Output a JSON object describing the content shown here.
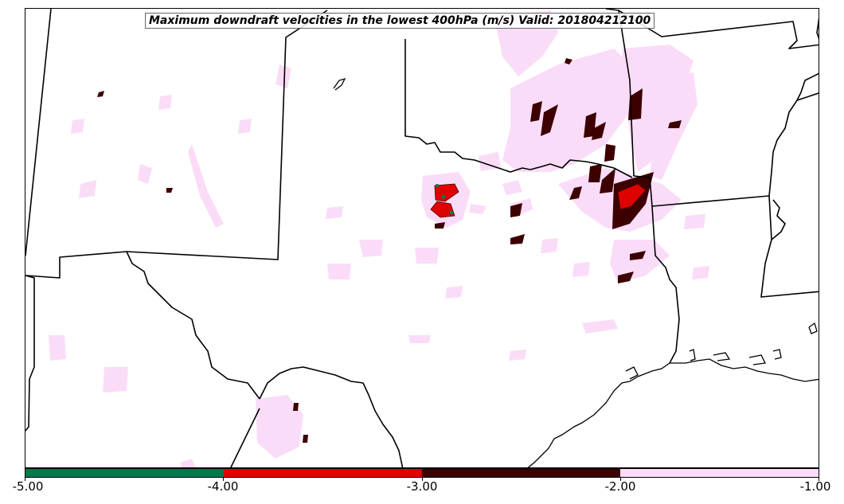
{
  "title": "Maximum downdraft velocities in the lowest 400hPa (m/s) Valid: 201804212100",
  "colorbar": {
    "segments": [
      {
        "range": [
          -5.0,
          -4.0
        ],
        "color": "#007a4d"
      },
      {
        "range": [
          -4.0,
          -3.0
        ],
        "color": "#e00000"
      },
      {
        "range": [
          -3.0,
          -2.0
        ],
        "color": "#3d0000"
      },
      {
        "range": [
          -2.0,
          -1.0
        ],
        "color": "#fadcf8"
      }
    ],
    "tick_labels": [
      "-5.00",
      "-4.00",
      "-3.00",
      "-2.00",
      "-1.00"
    ]
  },
  "palette": {
    "light": "#fadcf8",
    "dark": "#3d0000",
    "red": "#e00000",
    "green": "#007a4d",
    "boundary": "#000000"
  }
}
